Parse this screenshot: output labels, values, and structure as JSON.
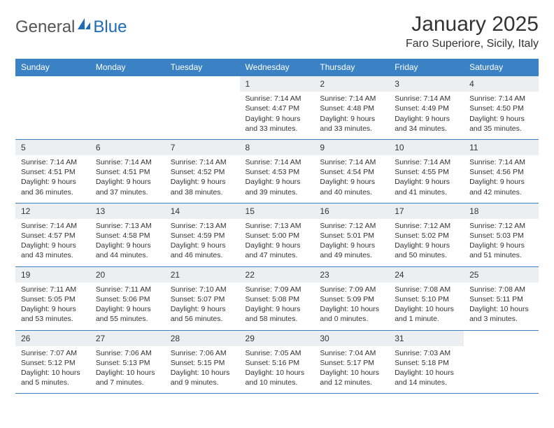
{
  "brand": {
    "name_part1": "General",
    "name_part2": "Blue",
    "color_accent": "#1e6bb8"
  },
  "title": "January 2025",
  "location": "Faro Superiore, Sicily, Italy",
  "colors": {
    "header_bg": "#3b82c4",
    "header_text": "#ffffff",
    "daynum_bg": "#eceff1",
    "border": "#3b82c4",
    "text": "#333333",
    "background": "#ffffff"
  },
  "typography": {
    "title_fontsize": 30,
    "location_fontsize": 16,
    "dayhead_fontsize": 12,
    "cell_fontsize": 10.5
  },
  "day_headers": [
    "Sunday",
    "Monday",
    "Tuesday",
    "Wednesday",
    "Thursday",
    "Friday",
    "Saturday"
  ],
  "weeks": [
    [
      {
        "empty": true
      },
      {
        "empty": true
      },
      {
        "empty": true
      },
      {
        "num": "1",
        "sunrise": "Sunrise: 7:14 AM",
        "sunset": "Sunset: 4:47 PM",
        "daylight1": "Daylight: 9 hours",
        "daylight2": "and 33 minutes."
      },
      {
        "num": "2",
        "sunrise": "Sunrise: 7:14 AM",
        "sunset": "Sunset: 4:48 PM",
        "daylight1": "Daylight: 9 hours",
        "daylight2": "and 33 minutes."
      },
      {
        "num": "3",
        "sunrise": "Sunrise: 7:14 AM",
        "sunset": "Sunset: 4:49 PM",
        "daylight1": "Daylight: 9 hours",
        "daylight2": "and 34 minutes."
      },
      {
        "num": "4",
        "sunrise": "Sunrise: 7:14 AM",
        "sunset": "Sunset: 4:50 PM",
        "daylight1": "Daylight: 9 hours",
        "daylight2": "and 35 minutes."
      }
    ],
    [
      {
        "num": "5",
        "sunrise": "Sunrise: 7:14 AM",
        "sunset": "Sunset: 4:51 PM",
        "daylight1": "Daylight: 9 hours",
        "daylight2": "and 36 minutes."
      },
      {
        "num": "6",
        "sunrise": "Sunrise: 7:14 AM",
        "sunset": "Sunset: 4:51 PM",
        "daylight1": "Daylight: 9 hours",
        "daylight2": "and 37 minutes."
      },
      {
        "num": "7",
        "sunrise": "Sunrise: 7:14 AM",
        "sunset": "Sunset: 4:52 PM",
        "daylight1": "Daylight: 9 hours",
        "daylight2": "and 38 minutes."
      },
      {
        "num": "8",
        "sunrise": "Sunrise: 7:14 AM",
        "sunset": "Sunset: 4:53 PM",
        "daylight1": "Daylight: 9 hours",
        "daylight2": "and 39 minutes."
      },
      {
        "num": "9",
        "sunrise": "Sunrise: 7:14 AM",
        "sunset": "Sunset: 4:54 PM",
        "daylight1": "Daylight: 9 hours",
        "daylight2": "and 40 minutes."
      },
      {
        "num": "10",
        "sunrise": "Sunrise: 7:14 AM",
        "sunset": "Sunset: 4:55 PM",
        "daylight1": "Daylight: 9 hours",
        "daylight2": "and 41 minutes."
      },
      {
        "num": "11",
        "sunrise": "Sunrise: 7:14 AM",
        "sunset": "Sunset: 4:56 PM",
        "daylight1": "Daylight: 9 hours",
        "daylight2": "and 42 minutes."
      }
    ],
    [
      {
        "num": "12",
        "sunrise": "Sunrise: 7:14 AM",
        "sunset": "Sunset: 4:57 PM",
        "daylight1": "Daylight: 9 hours",
        "daylight2": "and 43 minutes."
      },
      {
        "num": "13",
        "sunrise": "Sunrise: 7:13 AM",
        "sunset": "Sunset: 4:58 PM",
        "daylight1": "Daylight: 9 hours",
        "daylight2": "and 44 minutes."
      },
      {
        "num": "14",
        "sunrise": "Sunrise: 7:13 AM",
        "sunset": "Sunset: 4:59 PM",
        "daylight1": "Daylight: 9 hours",
        "daylight2": "and 46 minutes."
      },
      {
        "num": "15",
        "sunrise": "Sunrise: 7:13 AM",
        "sunset": "Sunset: 5:00 PM",
        "daylight1": "Daylight: 9 hours",
        "daylight2": "and 47 minutes."
      },
      {
        "num": "16",
        "sunrise": "Sunrise: 7:12 AM",
        "sunset": "Sunset: 5:01 PM",
        "daylight1": "Daylight: 9 hours",
        "daylight2": "and 49 minutes."
      },
      {
        "num": "17",
        "sunrise": "Sunrise: 7:12 AM",
        "sunset": "Sunset: 5:02 PM",
        "daylight1": "Daylight: 9 hours",
        "daylight2": "and 50 minutes."
      },
      {
        "num": "18",
        "sunrise": "Sunrise: 7:12 AM",
        "sunset": "Sunset: 5:03 PM",
        "daylight1": "Daylight: 9 hours",
        "daylight2": "and 51 minutes."
      }
    ],
    [
      {
        "num": "19",
        "sunrise": "Sunrise: 7:11 AM",
        "sunset": "Sunset: 5:05 PM",
        "daylight1": "Daylight: 9 hours",
        "daylight2": "and 53 minutes."
      },
      {
        "num": "20",
        "sunrise": "Sunrise: 7:11 AM",
        "sunset": "Sunset: 5:06 PM",
        "daylight1": "Daylight: 9 hours",
        "daylight2": "and 55 minutes."
      },
      {
        "num": "21",
        "sunrise": "Sunrise: 7:10 AM",
        "sunset": "Sunset: 5:07 PM",
        "daylight1": "Daylight: 9 hours",
        "daylight2": "and 56 minutes."
      },
      {
        "num": "22",
        "sunrise": "Sunrise: 7:09 AM",
        "sunset": "Sunset: 5:08 PM",
        "daylight1": "Daylight: 9 hours",
        "daylight2": "and 58 minutes."
      },
      {
        "num": "23",
        "sunrise": "Sunrise: 7:09 AM",
        "sunset": "Sunset: 5:09 PM",
        "daylight1": "Daylight: 10 hours",
        "daylight2": "and 0 minutes."
      },
      {
        "num": "24",
        "sunrise": "Sunrise: 7:08 AM",
        "sunset": "Sunset: 5:10 PM",
        "daylight1": "Daylight: 10 hours",
        "daylight2": "and 1 minute."
      },
      {
        "num": "25",
        "sunrise": "Sunrise: 7:08 AM",
        "sunset": "Sunset: 5:11 PM",
        "daylight1": "Daylight: 10 hours",
        "daylight2": "and 3 minutes."
      }
    ],
    [
      {
        "num": "26",
        "sunrise": "Sunrise: 7:07 AM",
        "sunset": "Sunset: 5:12 PM",
        "daylight1": "Daylight: 10 hours",
        "daylight2": "and 5 minutes."
      },
      {
        "num": "27",
        "sunrise": "Sunrise: 7:06 AM",
        "sunset": "Sunset: 5:13 PM",
        "daylight1": "Daylight: 10 hours",
        "daylight2": "and 7 minutes."
      },
      {
        "num": "28",
        "sunrise": "Sunrise: 7:06 AM",
        "sunset": "Sunset: 5:15 PM",
        "daylight1": "Daylight: 10 hours",
        "daylight2": "and 9 minutes."
      },
      {
        "num": "29",
        "sunrise": "Sunrise: 7:05 AM",
        "sunset": "Sunset: 5:16 PM",
        "daylight1": "Daylight: 10 hours",
        "daylight2": "and 10 minutes."
      },
      {
        "num": "30",
        "sunrise": "Sunrise: 7:04 AM",
        "sunset": "Sunset: 5:17 PM",
        "daylight1": "Daylight: 10 hours",
        "daylight2": "and 12 minutes."
      },
      {
        "num": "31",
        "sunrise": "Sunrise: 7:03 AM",
        "sunset": "Sunset: 5:18 PM",
        "daylight1": "Daylight: 10 hours",
        "daylight2": "and 14 minutes."
      },
      {
        "empty": true
      }
    ]
  ]
}
